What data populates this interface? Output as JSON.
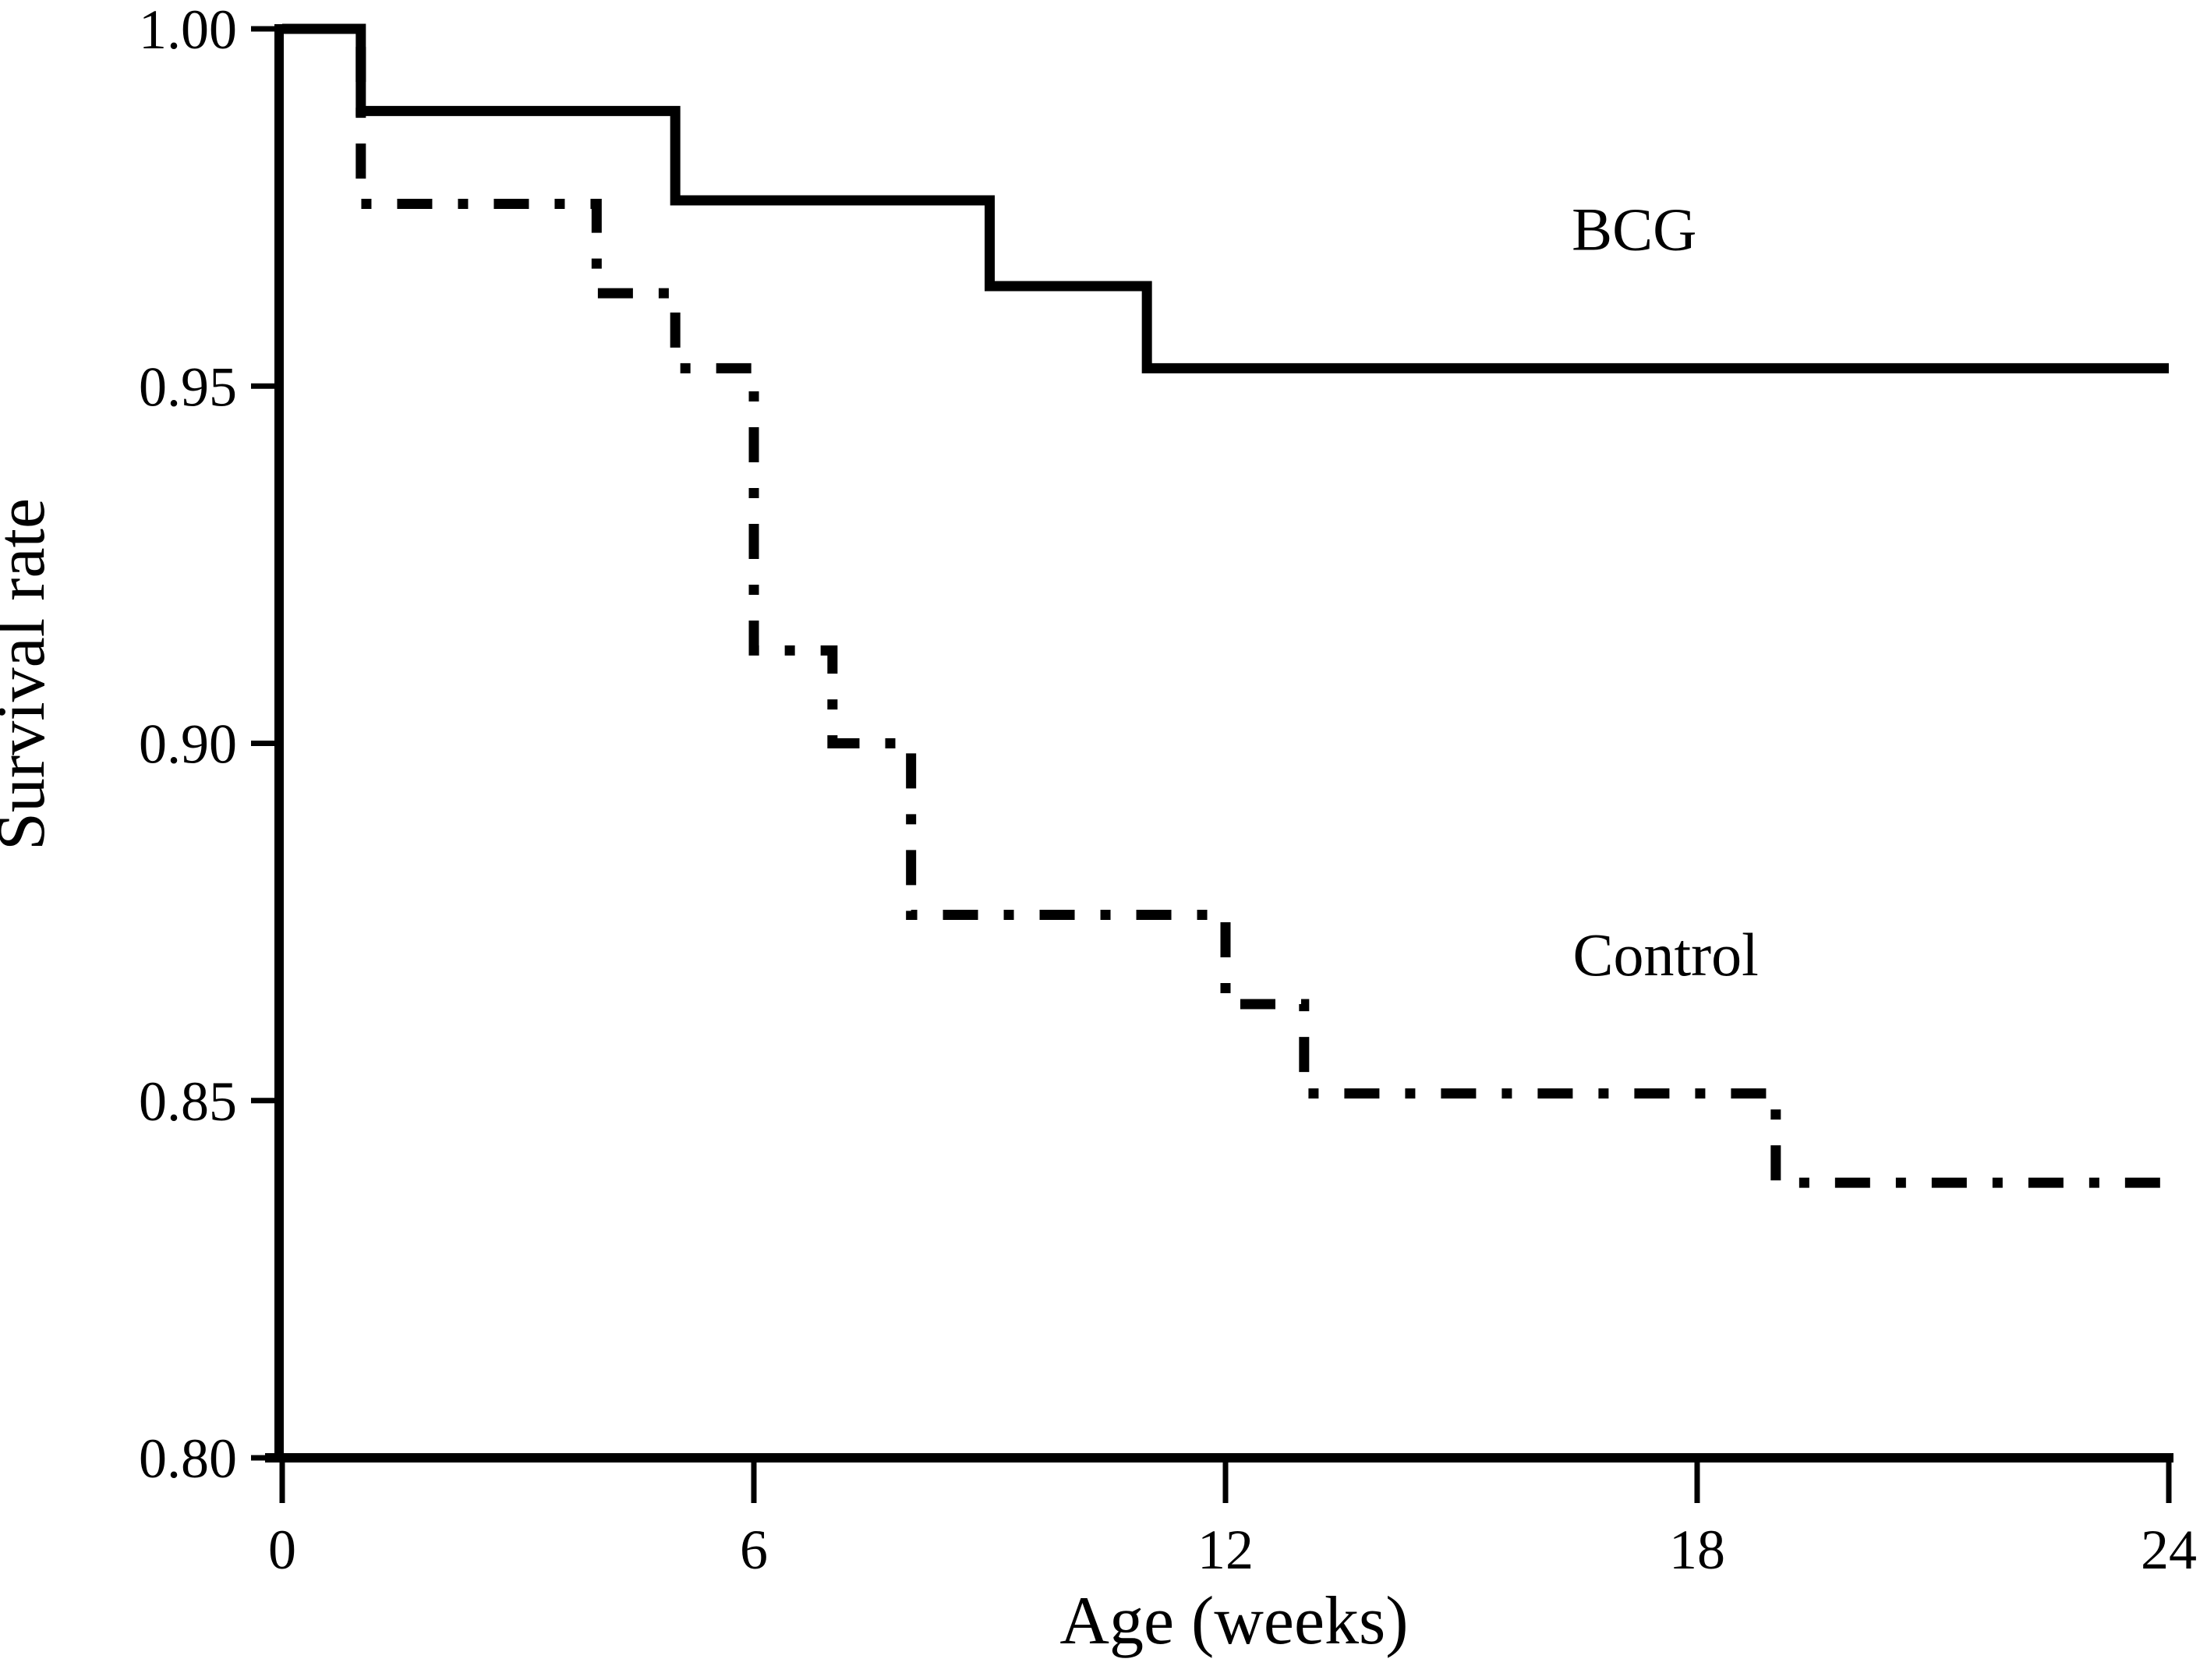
{
  "figure": {
    "background_color": "#ffffff",
    "ink_color": "#000000"
  },
  "chart_data": {
    "type": "line",
    "subtype": "kaplan-meier-step-survival-curve",
    "title": "",
    "xlabel": "Age (weeks)",
    "ylabel": "Survival rate",
    "xlim": [
      0,
      24
    ],
    "ylim": [
      0.8,
      1.0
    ],
    "grid": false,
    "legend_position": "inline-annotations",
    "x_ticks": [
      {
        "value": 0,
        "label": "0"
      },
      {
        "value": 6,
        "label": "6"
      },
      {
        "value": 12,
        "label": "12"
      },
      {
        "value": 18,
        "label": "18"
      },
      {
        "value": 24,
        "label": "24"
      }
    ],
    "y_ticks": [
      {
        "value": 1.0,
        "label": "1.00"
      },
      {
        "value": 0.95,
        "label": "0.95"
      },
      {
        "value": 0.9,
        "label": "0.90"
      },
      {
        "value": 0.85,
        "label": "0.85"
      },
      {
        "value": 0.8,
        "label": "0.80"
      }
    ],
    "series": [
      {
        "name": "BCG",
        "line_style": "solid",
        "color": "#000000",
        "annotation": {
          "x": 17.2,
          "y": 0.972
        },
        "points": [
          [
            0,
            1.0
          ],
          [
            1,
            0.9885
          ],
          [
            5,
            0.976
          ],
          [
            9,
            0.964
          ],
          [
            11,
            0.9525
          ],
          [
            24,
            0.9525
          ]
        ]
      },
      {
        "name": "Control",
        "line_style": "dash-dot",
        "color": "#000000",
        "annotation": {
          "x": 17.6,
          "y": 0.8705
        },
        "points": [
          [
            0,
            1.0
          ],
          [
            1,
            0.9755
          ],
          [
            4,
            0.963
          ],
          [
            5,
            0.9525
          ],
          [
            6,
            0.913
          ],
          [
            7,
            0.9
          ],
          [
            8,
            0.876
          ],
          [
            12,
            0.8635
          ],
          [
            13,
            0.851
          ],
          [
            19,
            0.8385
          ],
          [
            24,
            0.8385
          ]
        ]
      }
    ]
  }
}
